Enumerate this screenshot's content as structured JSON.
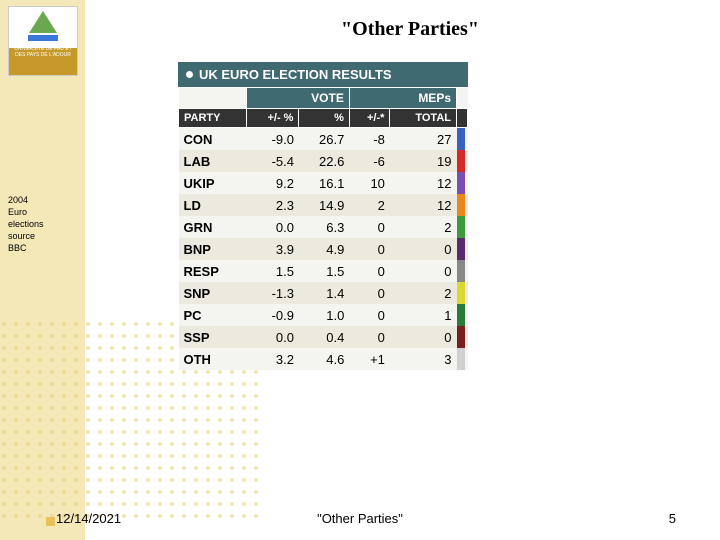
{
  "title": "\"Other Parties\"",
  "title_fontsize": 20,
  "note": {
    "l1": "2004",
    "l2": "Euro",
    "l3": "elections",
    "l4": "source",
    "l5": "BBC"
  },
  "logo": {
    "lines": "UNIVERSITÉ DE PAU ET DES PAYS DE L'ADOUR"
  },
  "footer": {
    "date": "12/14/2021",
    "center": "\"Other Parties\"",
    "page": "5"
  },
  "table": {
    "header_title": "UK EURO ELECTION RESULTS",
    "header_bg": "#406a72",
    "row_bg_odd": "#f4f4f0",
    "row_bg_even": "#eceade",
    "group_headers": {
      "vote": "VOTE",
      "meps": "MEPs"
    },
    "columns": {
      "party": "PARTY",
      "pm_pct": "+/- %",
      "pct": "%",
      "pm_meps": "+/-*",
      "total": "TOTAL"
    },
    "rows": [
      {
        "party": "CON",
        "pm_pct": "-9.0",
        "pct": "26.7",
        "pm_meps": "-8",
        "total": "27",
        "color": "#3b5fbf"
      },
      {
        "party": "LAB",
        "pm_pct": "-5.4",
        "pct": "22.6",
        "pm_meps": "-6",
        "total": "19",
        "color": "#d62a2a"
      },
      {
        "party": "UKIP",
        "pm_pct": "9.2",
        "pct": "16.1",
        "pm_meps": "10",
        "total": "12",
        "color": "#7a4fb0"
      },
      {
        "party": "LD",
        "pm_pct": "2.3",
        "pct": "14.9",
        "pm_meps": "2",
        "total": "12",
        "color": "#e68a1f"
      },
      {
        "party": "GRN",
        "pm_pct": "0.0",
        "pct": "6.3",
        "pm_meps": "0",
        "total": "2",
        "color": "#3c9a3c"
      },
      {
        "party": "BNP",
        "pm_pct": "3.9",
        "pct": "4.9",
        "pm_meps": "0",
        "total": "0",
        "color": "#5a2a6e"
      },
      {
        "party": "RESP",
        "pm_pct": "1.5",
        "pct": "1.5",
        "pm_meps": "0",
        "total": "0",
        "color": "#888888"
      },
      {
        "party": "SNP",
        "pm_pct": "-1.3",
        "pct": "1.4",
        "pm_meps": "0",
        "total": "2",
        "color": "#d8d830"
      },
      {
        "party": "PC",
        "pm_pct": "-0.9",
        "pct": "1.0",
        "pm_meps": "0",
        "total": "1",
        "color": "#2a7a3a"
      },
      {
        "party": "SSP",
        "pm_pct": "0.0",
        "pct": "0.4",
        "pm_meps": "0",
        "total": "0",
        "color": "#7a1f1f"
      },
      {
        "party": "OTH",
        "pm_pct": "3.2",
        "pct": "4.6",
        "pm_meps": "+1",
        "total": "3",
        "color": "#d0d0d0"
      }
    ]
  }
}
